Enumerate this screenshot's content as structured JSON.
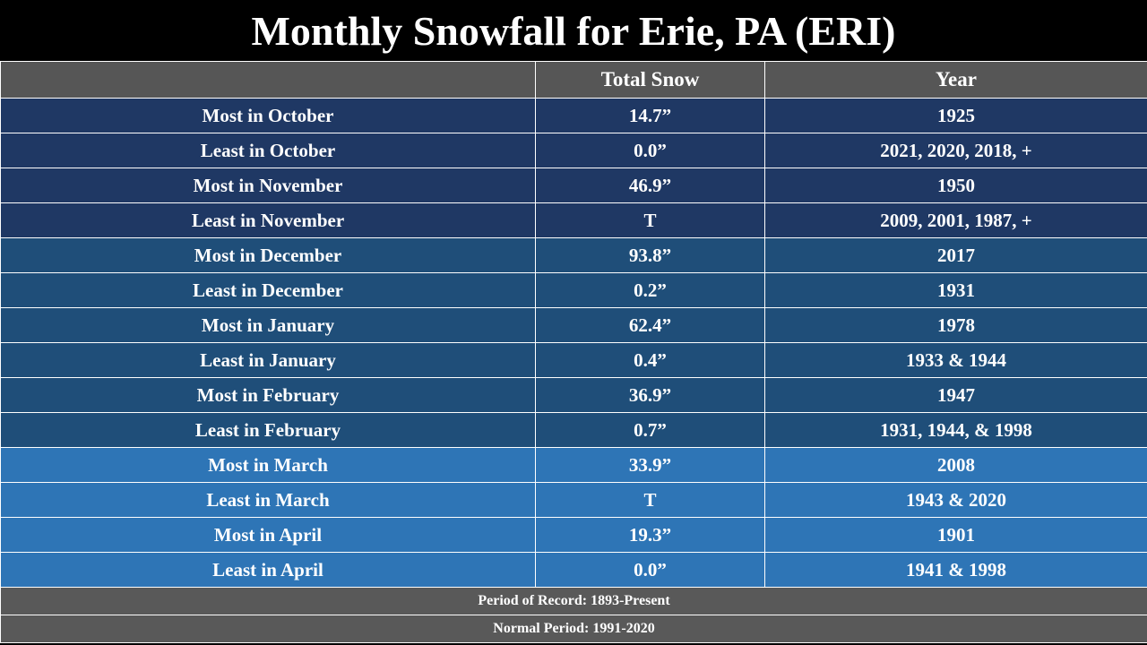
{
  "title": "Monthly Snowfall for Erie, PA (ERI)",
  "headers": [
    "",
    "Total Snow",
    "Year"
  ],
  "colors": {
    "dark_blue": "#1f3864",
    "mid_blue": "#1f4e79",
    "light_blue": "#2e75b6",
    "header_gray": "#565656",
    "footer_gray": "#595959"
  },
  "rows": [
    {
      "label": "Most in October",
      "snow": "14.7”",
      "year": "1925"
    },
    {
      "label": "Least in October",
      "snow": "0.0”",
      "year": "2021, 2020, 2018, +"
    },
    {
      "label": "Most in November",
      "snow": "46.9”",
      "year": "1950"
    },
    {
      "label": "Least in November",
      "snow": "T",
      "year": "2009, 2001, 1987, +"
    },
    {
      "label": "Most in December",
      "snow": "93.8”",
      "year": "2017"
    },
    {
      "label": "Least in December",
      "snow": "0.2”",
      "year": "1931"
    },
    {
      "label": "Most in January",
      "snow": "62.4”",
      "year": "1978"
    },
    {
      "label": "Least in January",
      "snow": "0.4”",
      "year": "1933 & 1944"
    },
    {
      "label": "Most in February",
      "snow": "36.9”",
      "year": "1947"
    },
    {
      "label": "Least in February",
      "snow": "0.7”",
      "year": "1931, 1944, & 1998"
    },
    {
      "label": "Most in March",
      "snow": "33.9”",
      "year": "2008"
    },
    {
      "label": "Least in March",
      "snow": "T",
      "year": "1943 & 2020"
    },
    {
      "label": "Most in April",
      "snow": "19.3”",
      "year": "1901"
    },
    {
      "label": "Least in April",
      "snow": "0.0”",
      "year": "1941 & 1998"
    }
  ],
  "footer": {
    "period_of_record": "Period of Record: 1893-Present",
    "normal_period": "Normal Period: 1991-2020"
  }
}
